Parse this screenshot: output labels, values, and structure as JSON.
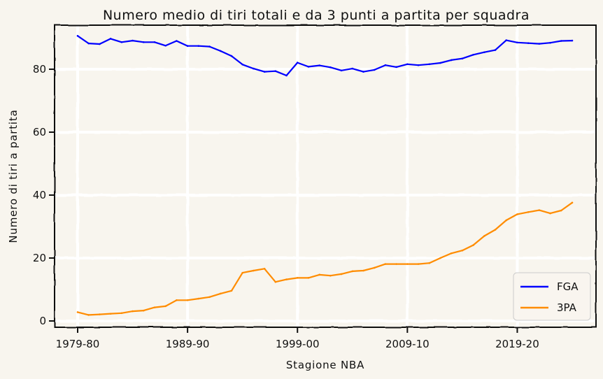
{
  "chart_data": {
    "type": "line",
    "title": "Numero medio di tiri totali e da 3 punti a partita per squadra",
    "xlabel": "Stagione NBA",
    "ylabel": "Numero di tiri a partita",
    "x_tick_labels": [
      "1979-80",
      "1989-90",
      "1999-00",
      "2009-10",
      "2019-20"
    ],
    "y_ticks": [
      0,
      20,
      40,
      60,
      80
    ],
    "ylim": [
      -2,
      94
    ],
    "grid": true,
    "legend_position": "bottom-right",
    "x": [
      "1979-80",
      "1980-81",
      "1981-82",
      "1982-83",
      "1983-84",
      "1984-85",
      "1985-86",
      "1986-87",
      "1987-88",
      "1988-89",
      "1989-90",
      "1990-91",
      "1991-92",
      "1992-93",
      "1993-94",
      "1994-95",
      "1995-96",
      "1996-97",
      "1997-98",
      "1998-99",
      "1999-00",
      "2000-01",
      "2001-02",
      "2002-03",
      "2003-04",
      "2004-05",
      "2005-06",
      "2006-07",
      "2007-08",
      "2008-09",
      "2009-10",
      "2010-11",
      "2011-12",
      "2012-13",
      "2013-14",
      "2014-15",
      "2015-16",
      "2016-17",
      "2017-18",
      "2018-19",
      "2019-20",
      "2020-21",
      "2021-22",
      "2022-23",
      "2023-24",
      "2024-25"
    ],
    "series": [
      {
        "name": "FGA",
        "color": "#0000ff",
        "values": [
          90.6,
          88.2,
          88.0,
          89.7,
          88.6,
          89.1,
          88.6,
          88.6,
          87.5,
          89.0,
          87.4,
          87.4,
          87.2,
          85.8,
          84.2,
          81.5,
          80.2,
          79.2,
          79.4,
          78.0,
          82.1,
          80.8,
          81.2,
          80.6,
          79.6,
          80.2,
          79.2,
          79.8,
          81.3,
          80.7,
          81.6,
          81.3,
          81.6,
          82.0,
          82.9,
          83.4,
          84.6,
          85.4,
          86.1,
          89.2,
          88.5,
          88.3,
          88.1,
          88.4,
          89.0,
          89.1
        ],
        "color_name": "blue"
      },
      {
        "name": "3PA",
        "color": "#ff8c00",
        "values": [
          2.8,
          1.9,
          2.1,
          2.3,
          2.5,
          3.1,
          3.3,
          4.3,
          4.7,
          6.6,
          6.6,
          7.1,
          7.6,
          8.7,
          9.6,
          15.3,
          16.0,
          16.6,
          12.4,
          13.2,
          13.7,
          13.7,
          14.7,
          14.4,
          14.9,
          15.8,
          16.0,
          16.9,
          18.1,
          18.1,
          18.1,
          18.1,
          18.4,
          20.0,
          21.5,
          22.4,
          24.1,
          27.0,
          29.0,
          32.0,
          33.9,
          34.6,
          35.2,
          34.2,
          35.1,
          37.6
        ],
        "color_name": "darkorange"
      }
    ]
  }
}
